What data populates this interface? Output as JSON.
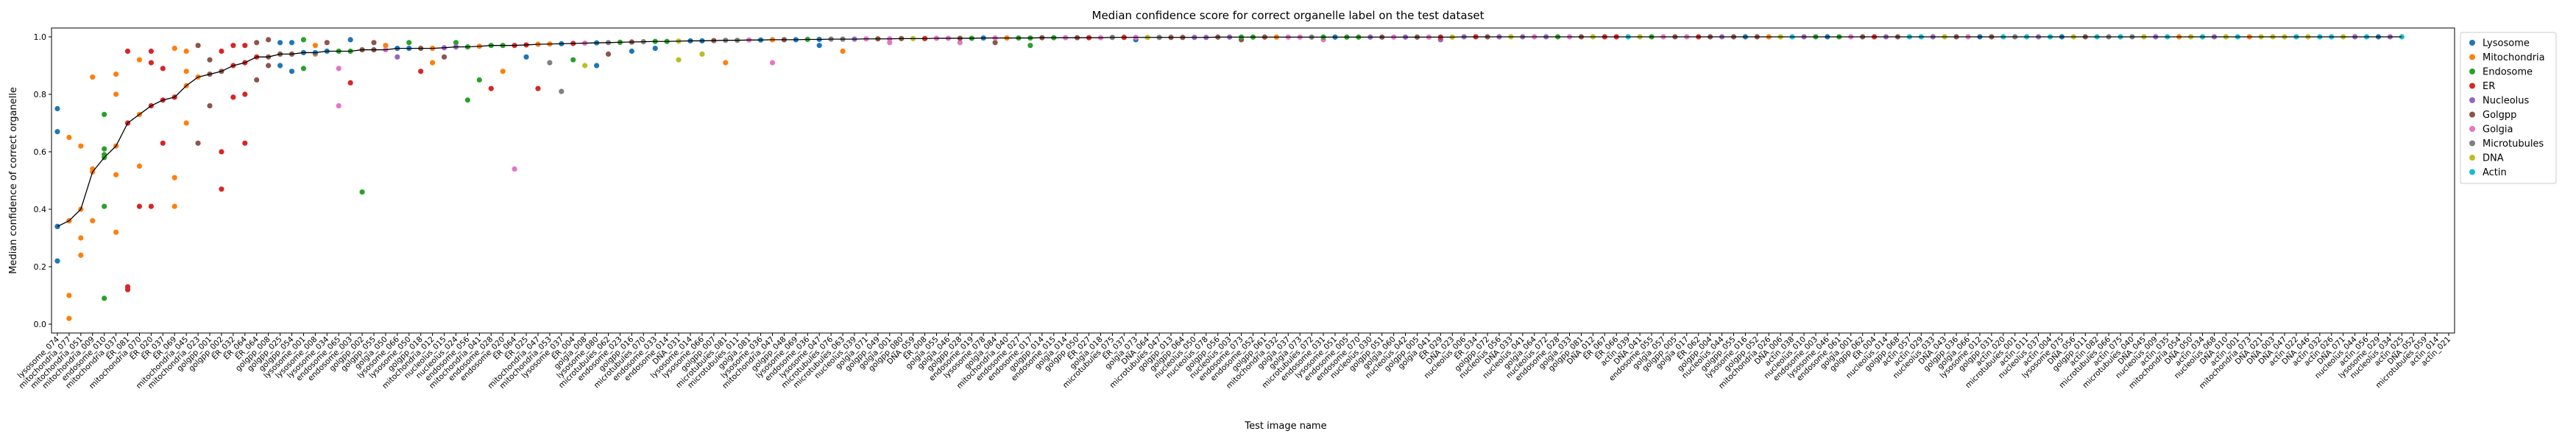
{
  "chart_data": {
    "type": "scatter",
    "title": "Median confidence score for correct organelle label on the test dataset",
    "xlabel": "Test image name",
    "ylabel": "Median confidence of correct organelle",
    "ylim": [
      0.0,
      1.0
    ],
    "yticks": [
      "0.0",
      "0.2",
      "0.4",
      "0.6",
      "0.8",
      "1.0"
    ],
    "grid": false,
    "legend_position": "top-right",
    "legend": [
      {
        "name": "Lysosome",
        "color": "#1f77b4"
      },
      {
        "name": "Mitochondria",
        "color": "#ff7f0e"
      },
      {
        "name": "Endosome",
        "color": "#2ca02c"
      },
      {
        "name": "ER",
        "color": "#d62728"
      },
      {
        "name": "Nucleolus",
        "color": "#9467bd"
      },
      {
        "name": "Golgpp",
        "color": "#8c564b"
      },
      {
        "name": "Golgia",
        "color": "#e377c2"
      },
      {
        "name": "Microtubules",
        "color": "#7f7f7f"
      },
      {
        "name": "DNA",
        "color": "#bcbd22"
      },
      {
        "name": "Actin",
        "color": "#17becf"
      }
    ],
    "categories": [
      "lysosome_074",
      "mitochondria_077",
      "mitochondria_051",
      "mitochondria_009",
      "endosome_010",
      "mitochondria_037",
      "ER_081",
      "mitochondria_070",
      "ER_020",
      "ER_037",
      "ER_069",
      "mitochondria_045",
      "mitochondria_023",
      "golgpp_001",
      "golgpp_002",
      "ER_032",
      "ER_064",
      "ER_064",
      "golgpp_008",
      "golgpp_025",
      "golgpp_054",
      "lysosome_001",
      "lysosome_008",
      "lysosome_034",
      "endosome_065",
      "endosome_003",
      "golgpp_002",
      "golgpp_055",
      "golgia_050",
      "lysosome_066",
      "lysosome_050",
      "golgpp_018",
      "mitochondria_012",
      "nucleolus_015",
      "nucleolus_024",
      "endosome_056",
      "mitochondria_041",
      "endosome_028",
      "endosome_020",
      "ER_064",
      "ER_025",
      "mitochondria_047",
      "mitochondria_053",
      "lysosome_037",
      "ER_004",
      "golgia_008",
      "lysosome_080",
      "microtubules_062",
      "endosome_023",
      "golgpp_016",
      "microtubules_070",
      "endosome_033",
      "endosome_014",
      "DNA_031",
      "lysosome_014",
      "lysosome_066",
      "golgpp_007",
      "microtubules_081",
      "microtubules_011",
      "golgia_081",
      "lysosome_036",
      "mitochondria_047",
      "golgpp_048",
      "lysosome_069",
      "endosome_036",
      "lysosome_047",
      "microtubules_076",
      "microtubules_063",
      "nucleolus_039",
      "golgia_071",
      "golgpp_049",
      "golgia_001",
      "golgpp_080",
      "DNA_059",
      "ER_008",
      "golgia_055",
      "golgia_046",
      "golgpp_028",
      "endosome_019",
      "lysosome_078",
      "golgia_084",
      "mitochondria_040",
      "endosome_027",
      "endosome_017",
      "golgpp_014",
      "endosome_015",
      "golgia_014",
      "golgpp_050",
      "ER_027",
      "golgia_018",
      "microtubules_075",
      "ER_037",
      "golgia_073",
      "DNA_064",
      "microtubules_047",
      "golgpp_013",
      "golgpp_064",
      "nucleolus_050",
      "nucleolus_078",
      "golgpp_056",
      "nucleolus_003",
      "endosome_073",
      "endosome_052",
      "golgpp_061",
      "mitochondria_032",
      "golgia_037",
      "golgia_073",
      "microtubules_072",
      "endosome_031",
      "lysosome_051",
      "endosome_005",
      "endosome_070",
      "nucleolus_030",
      "golgpp_051",
      "golgia_060",
      "nucleolus_042",
      "golgpp_005",
      "golgia_041",
      "ER_029",
      "DNA_023",
      "nucleolus_006",
      "ER_034",
      "golgpp_072",
      "nucleolus_056",
      "DNA_033",
      "nucleolus_041",
      "golgia_064",
      "nucleolus_072",
      "endosome_028",
      "golgia_033",
      "golgpp_081",
      "DNA_012",
      "ER_067",
      "ER_066",
      "actin_039",
      "DNA_041",
      "endosome_055",
      "golgia_057",
      "golgpp_005",
      "golgia_017",
      "ER_062",
      "golgpp_004",
      "nucleolus_044",
      "golgpp_055",
      "lysosome_016",
      "golgpp_052",
      "mitochondria_026",
      "DNA_006",
      "actin_038",
      "nucleolus_010",
      "endosome_003",
      "lysosome_046",
      "endosome_061",
      "golgia_001",
      "golgpp_062",
      "ER_004",
      "nucleolus_014",
      "golgpp_068",
      "actin_057",
      "actin_029",
      "nucleolus_033",
      "DNA_043",
      "golgpp_036",
      "golgia_066",
      "lysosome_012",
      "golgpp_031",
      "actin_020",
      "microtubules_001",
      "actin_011",
      "nucleolus_037",
      "actin_004",
      "lysosome_075",
      "DNA_056",
      "golgpp_011",
      "actin_082",
      "microtubules_066",
      "actin_075",
      "microtubules_040",
      "DNA_045",
      "nucleolus_009",
      "actin_035",
      "mitochondria_054",
      "DNA_050",
      "actin_034",
      "nucleolus_068",
      "DNA_010",
      "actin_001",
      "mitochondria_073",
      "DNA_021",
      "DNA_003",
      "DNA_047",
      "actin_022",
      "DNA_046",
      "actin_032",
      "actin_026",
      "DNA_071",
      "nucleolus_044",
      "actin_056",
      "lysosome_029",
      "nucleolus_034",
      "actin_025",
      "DNA_052",
      "microtubules_059",
      "actin_014",
      "actin_021"
    ],
    "median_series": {
      "name": "",
      "color": "#000000",
      "values": [
        0.34,
        0.36,
        0.4,
        0.53,
        0.58,
        0.62,
        0.7,
        0.73,
        0.76,
        0.78,
        0.79,
        0.83,
        0.86,
        0.87,
        0.88,
        0.9,
        0.91,
        0.93,
        0.93,
        0.94,
        0.94,
        0.945,
        0.945,
        0.95,
        0.95,
        0.95,
        0.955,
        0.955,
        0.955,
        0.96,
        0.96,
        0.96,
        0.96,
        0.962,
        0.965,
        0.965,
        0.967,
        0.97,
        0.97,
        0.97,
        0.972,
        0.974,
        0.975,
        0.976,
        0.977,
        0.978,
        0.979,
        0.98,
        0.981,
        0.982,
        0.983,
        0.984,
        0.984,
        0.985,
        0.986,
        0.986,
        0.987,
        0.988,
        0.988,
        0.989,
        0.989,
        0.99,
        0.99,
        0.99,
        0.991,
        0.991,
        0.992,
        0.992,
        0.992,
        0.993,
        0.993,
        0.993,
        0.994,
        0.994,
        0.994,
        0.995,
        0.995,
        0.995,
        0.995,
        0.996,
        0.996,
        0.996,
        0.996,
        0.996,
        0.997,
        0.997,
        0.997,
        0.997,
        0.997,
        0.997,
        0.998,
        0.998,
        0.998,
        0.998,
        0.998,
        0.998,
        0.998,
        0.998,
        0.998,
        0.999,
        0.999,
        0.999,
        0.999,
        0.999,
        0.999,
        0.999,
        0.999,
        0.999,
        0.999,
        0.999,
        0.999,
        0.999,
        0.999,
        0.999,
        0.999,
        0.999,
        0.999,
        0.999,
        0.999,
        0.999,
        1.0,
        1.0,
        1.0,
        1.0,
        1.0,
        1.0,
        1.0,
        1.0,
        1.0,
        1.0,
        1.0,
        1.0,
        1.0,
        1.0,
        1.0,
        1.0,
        1.0,
        1.0,
        1.0,
        1.0,
        1.0,
        1.0,
        1.0,
        1.0,
        1.0,
        1.0,
        1.0,
        1.0,
        1.0,
        1.0,
        1.0,
        1.0,
        1.0,
        1.0,
        1.0,
        1.0,
        1.0,
        1.0,
        1.0,
        1.0,
        1.0,
        1.0,
        1.0,
        1.0,
        1.0,
        1.0,
        1.0,
        1.0,
        1.0,
        1.0,
        1.0,
        1.0,
        1.0,
        1.0,
        1.0,
        1.0,
        1.0,
        1.0,
        1.0,
        1.0,
        1.0,
        1.0,
        1.0,
        1.0,
        1.0,
        1.0,
        1.0,
        1.0,
        1.0,
        1.0,
        1.0,
        1.0,
        1.0,
        1.0,
        1.0,
        1.0,
        1.0,
        1.0,
        1.0,
        1.0,
        1.0
      ]
    },
    "points": [
      {
        "series": "Lysosome",
        "x": 0,
        "y": 0.75
      },
      {
        "series": "Lysosome",
        "x": 0,
        "y": 0.67
      },
      {
        "series": "Lysosome",
        "x": 0,
        "y": 0.34
      },
      {
        "series": "Lysosome",
        "x": 0,
        "y": 0.22
      },
      {
        "series": "Mitochondria",
        "x": 1,
        "y": 0.65
      },
      {
        "series": "Mitochondria",
        "x": 1,
        "y": 0.36
      },
      {
        "series": "Mitochondria",
        "x": 1,
        "y": 0.1
      },
      {
        "series": "Mitochondria",
        "x": 1,
        "y": 0.02
      },
      {
        "series": "Mitochondria",
        "x": 2,
        "y": 0.62
      },
      {
        "series": "Mitochondria",
        "x": 2,
        "y": 0.3
      },
      {
        "series": "Mitochondria",
        "x": 2,
        "y": 0.24
      },
      {
        "series": "Mitochondria",
        "x": 3,
        "y": 0.86
      },
      {
        "series": "Mitochondria",
        "x": 3,
        "y": 0.54
      },
      {
        "series": "Mitochondria",
        "x": 3,
        "y": 0.36
      },
      {
        "series": "Endosome",
        "x": 4,
        "y": 0.73
      },
      {
        "series": "Endosome",
        "x": 4,
        "y": 0.61
      },
      {
        "series": "Endosome",
        "x": 4,
        "y": 0.59
      },
      {
        "series": "Endosome",
        "x": 4,
        "y": 0.41
      },
      {
        "series": "Endosome",
        "x": 4,
        "y": 0.09
      },
      {
        "series": "Mitochondria",
        "x": 5,
        "y": 0.87
      },
      {
        "series": "Mitochondria",
        "x": 5,
        "y": 0.8
      },
      {
        "series": "Mitochondria",
        "x": 5,
        "y": 0.52
      },
      {
        "series": "Mitochondria",
        "x": 5,
        "y": 0.32
      },
      {
        "series": "ER",
        "x": 6,
        "y": 0.95
      },
      {
        "series": "ER",
        "x": 6,
        "y": 0.7
      },
      {
        "series": "ER",
        "x": 6,
        "y": 0.13
      },
      {
        "series": "ER",
        "x": 6,
        "y": 0.12
      },
      {
        "series": "Mitochondria",
        "x": 7,
        "y": 0.92
      },
      {
        "series": "Mitochondria",
        "x": 7,
        "y": 0.55
      },
      {
        "series": "ER",
        "x": 7,
        "y": 0.41
      },
      {
        "series": "ER",
        "x": 8,
        "y": 0.95
      },
      {
        "series": "ER",
        "x": 8,
        "y": 0.91
      },
      {
        "series": "ER",
        "x": 8,
        "y": 0.41
      },
      {
        "series": "ER",
        "x": 9,
        "y": 0.89
      },
      {
        "series": "ER",
        "x": 9,
        "y": 0.63
      },
      {
        "series": "Mitochondria",
        "x": 10,
        "y": 0.96
      },
      {
        "series": "Mitochondria",
        "x": 10,
        "y": 0.51
      },
      {
        "series": "Mitochondria",
        "x": 10,
        "y": 0.41
      },
      {
        "series": "Mitochondria",
        "x": 11,
        "y": 0.95
      },
      {
        "series": "Mitochondria",
        "x": 11,
        "y": 0.88
      },
      {
        "series": "Mitochondria",
        "x": 11,
        "y": 0.7
      },
      {
        "series": "Golgpp",
        "x": 12,
        "y": 0.97
      },
      {
        "series": "Golgpp",
        "x": 12,
        "y": 0.63
      },
      {
        "series": "Golgpp",
        "x": 13,
        "y": 0.92
      },
      {
        "series": "Golgpp",
        "x": 13,
        "y": 0.76
      },
      {
        "series": "ER",
        "x": 14,
        "y": 0.95
      },
      {
        "series": "ER",
        "x": 14,
        "y": 0.6
      },
      {
        "series": "ER",
        "x": 14,
        "y": 0.47
      },
      {
        "series": "ER",
        "x": 15,
        "y": 0.97
      },
      {
        "series": "ER",
        "x": 15,
        "y": 0.79
      },
      {
        "series": "ER",
        "x": 16,
        "y": 0.97
      },
      {
        "series": "ER",
        "x": 16,
        "y": 0.8
      },
      {
        "series": "ER",
        "x": 16,
        "y": 0.63
      },
      {
        "series": "Golgpp",
        "x": 17,
        "y": 0.98
      },
      {
        "series": "Golgpp",
        "x": 17,
        "y": 0.85
      },
      {
        "series": "Golgpp",
        "x": 18,
        "y": 0.99
      },
      {
        "series": "Golgpp",
        "x": 18,
        "y": 0.9
      },
      {
        "series": "Lysosome",
        "x": 19,
        "y": 0.98
      },
      {
        "series": "Lysosome",
        "x": 19,
        "y": 0.9
      },
      {
        "series": "Lysosome",
        "x": 20,
        "y": 0.98
      },
      {
        "series": "Lysosome",
        "x": 20,
        "y": 0.88
      },
      {
        "series": "Endosome",
        "x": 21,
        "y": 0.99
      },
      {
        "series": "Endosome",
        "x": 21,
        "y": 0.89
      },
      {
        "series": "Mitochondria",
        "x": 22,
        "y": 0.97
      },
      {
        "series": "Mitochondria",
        "x": 22,
        "y": 0.94
      },
      {
        "series": "Golgpp",
        "x": 23,
        "y": 0.98
      },
      {
        "series": "Golgia",
        "x": 24,
        "y": 0.89
      },
      {
        "series": "Golgia",
        "x": 24,
        "y": 0.76
      },
      {
        "series": "Lysosome",
        "x": 25,
        "y": 0.99
      },
      {
        "series": "ER",
        "x": 25,
        "y": 0.84
      },
      {
        "series": "Endosome",
        "x": 26,
        "y": 0.46
      },
      {
        "series": "Golgpp",
        "x": 27,
        "y": 0.98
      },
      {
        "series": "Mitochondria",
        "x": 28,
        "y": 0.97
      },
      {
        "series": "Nucleolus",
        "x": 29,
        "y": 0.93
      },
      {
        "series": "Endosome",
        "x": 30,
        "y": 0.98
      },
      {
        "series": "ER",
        "x": 31,
        "y": 0.88
      },
      {
        "series": "Mitochondria",
        "x": 32,
        "y": 0.91
      },
      {
        "series": "Golgpp",
        "x": 33,
        "y": 0.93
      },
      {
        "series": "Endosome",
        "x": 34,
        "y": 0.98
      },
      {
        "series": "Endosome",
        "x": 35,
        "y": 0.78
      },
      {
        "series": "Endosome",
        "x": 36,
        "y": 0.85
      },
      {
        "series": "ER",
        "x": 37,
        "y": 0.82
      },
      {
        "series": "Mitochondria",
        "x": 38,
        "y": 0.88
      },
      {
        "series": "Golgia",
        "x": 39,
        "y": 0.54
      },
      {
        "series": "Lysosome",
        "x": 40,
        "y": 0.93
      },
      {
        "series": "ER",
        "x": 41,
        "y": 0.82
      },
      {
        "series": "Microtubules",
        "x": 42,
        "y": 0.91
      },
      {
        "series": "Microtubules",
        "x": 43,
        "y": 0.81
      },
      {
        "series": "Endosome",
        "x": 44,
        "y": 0.92
      },
      {
        "series": "DNA",
        "x": 45,
        "y": 0.9
      },
      {
        "series": "Lysosome",
        "x": 46,
        "y": 0.9
      },
      {
        "series": "Golgpp",
        "x": 47,
        "y": 0.94
      },
      {
        "series": "Lysosome",
        "x": 49,
        "y": 0.95
      },
      {
        "series": "Lysosome",
        "x": 51,
        "y": 0.96
      },
      {
        "series": "DNA",
        "x": 53,
        "y": 0.92
      },
      {
        "series": "DNA",
        "x": 55,
        "y": 0.94
      },
      {
        "series": "Mitochondria",
        "x": 57,
        "y": 0.91
      },
      {
        "series": "Golgia",
        "x": 61,
        "y": 0.91
      },
      {
        "series": "Lysosome",
        "x": 65,
        "y": 0.97
      },
      {
        "series": "Mitochondria",
        "x": 67,
        "y": 0.95
      },
      {
        "series": "Endosome",
        "x": 83,
        "y": 0.97
      },
      {
        "series": "Golgia",
        "x": 71,
        "y": 0.98
      },
      {
        "series": "Golgia",
        "x": 77,
        "y": 0.98
      },
      {
        "series": "Golgpp",
        "x": 80,
        "y": 0.98
      },
      {
        "series": "Lysosome",
        "x": 92,
        "y": 0.99
      },
      {
        "series": "Golgpp",
        "x": 101,
        "y": 0.99
      },
      {
        "series": "Golgia",
        "x": 108,
        "y": 0.99
      },
      {
        "series": "Nucleolus",
        "x": 118,
        "y": 0.99
      }
    ]
  }
}
